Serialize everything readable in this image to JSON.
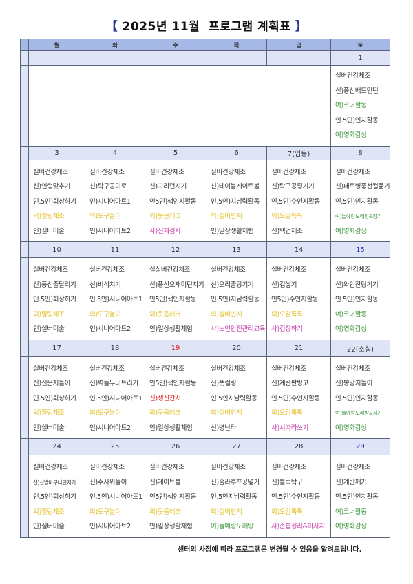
{
  "title": {
    "open": "【",
    "text": "2025년 11월  프로그램 계획표",
    "close": "】"
  },
  "colors": {
    "k": "#333333",
    "y": "#e3c02a",
    "m": "#c43aa8",
    "g": "#3c963c",
    "r": "#e01e1e",
    "b": "#2a3ab8"
  },
  "weekdays": [
    "월",
    "화",
    "수",
    "목",
    "금",
    "토"
  ],
  "weeks": [
    {
      "days": [
        {
          "date": "",
          "items": []
        },
        {
          "date": "",
          "items": []
        },
        {
          "date": "",
          "items": []
        },
        {
          "date": "",
          "items": []
        },
        {
          "date": "",
          "items": []
        },
        {
          "date": "1",
          "items": [
            {
              "text": "실버건강체조",
              "color": "k"
            },
            {
              "text": "신)풍선배드민턴",
              "color": "k"
            },
            {
              "text": "여)코너활동",
              "color": "g"
            },
            {
              "text": "인.5인)인지활동",
              "color": "k"
            },
            {
              "text": "여)영화감상",
              "color": "g"
            }
          ]
        }
      ]
    },
    {
      "days": [
        {
          "date": "3",
          "items": [
            {
              "text": "실버건강체조",
              "color": "k"
            },
            {
              "text": "신)인형맞추기",
              "color": "k"
            },
            {
              "text": "인.5인)회상하기",
              "color": "k"
            },
            {
              "text": "외)힐링체조",
              "color": "y"
            },
            {
              "text": "인)실버미술",
              "color": "k"
            }
          ]
        },
        {
          "date": "4",
          "items": [
            {
              "text": "실버건강체조",
              "color": "k"
            },
            {
              "text": "신)탁구공미로",
              "color": "k"
            },
            {
              "text": "인)시니어아트1",
              "color": "k"
            },
            {
              "text": "외)도구놀이",
              "color": "y"
            },
            {
              "text": "인)시니어아트2",
              "color": "k"
            }
          ]
        },
        {
          "date": "5",
          "items": [
            {
              "text": "실버건강체조",
              "color": "k"
            },
            {
              "text": "신)고리던지기",
              "color": "k"
            },
            {
              "text": "인5인)색인지활동",
              "color": "k"
            },
            {
              "text": "외)웃음레크",
              "color": "y"
            },
            {
              "text": "사)신체검사",
              "color": "m"
            }
          ]
        },
        {
          "date": "6",
          "items": [
            {
              "text": "실버건강체조",
              "color": "k"
            },
            {
              "text": "신)테이블게이트볼",
              "color": "k"
            },
            {
              "text": "인.5인)지남력활동",
              "color": "k"
            },
            {
              "text": "외)실버인지",
              "color": "y"
            },
            {
              "text": "인)일상생활체험",
              "color": "k"
            }
          ]
        },
        {
          "date": "7(입동)",
          "items": [
            {
              "text": "실버건강체조",
              "color": "k"
            },
            {
              "text": "신)탁구공튕기기",
              "color": "k"
            },
            {
              "text": "인.5인)수인지활동",
              "color": "k"
            },
            {
              "text": "외)오감톡톡",
              "color": "y"
            },
            {
              "text": "신)백업체조",
              "color": "k"
            }
          ]
        },
        {
          "date": "8",
          "items": [
            {
              "text": "실버건강체조",
              "color": "k"
            },
            {
              "text": "신)페트병풍선컵옮기기",
              "color": "k"
            },
            {
              "text": "인.5인)인지활동",
              "color": "k"
            },
            {
              "text": "여)늘예랑노래방&장기",
              "color": "g",
              "small": true
            },
            {
              "text": "여)영화감상",
              "color": "g"
            }
          ]
        }
      ]
    },
    {
      "days": [
        {
          "date": "10",
          "items": [
            {
              "text": "실버건강체조",
              "color": "k"
            },
            {
              "text": "신)풍선줄달리기",
              "color": "k"
            },
            {
              "text": "인.5인)회상하기",
              "color": "k"
            },
            {
              "text": "외)힐링체조",
              "color": "y"
            },
            {
              "text": "인)실버미술",
              "color": "k"
            }
          ]
        },
        {
          "date": "11",
          "items": [
            {
              "text": "실버건강체조",
              "color": "k"
            },
            {
              "text": "신)비석치기",
              "color": "k"
            },
            {
              "text": "인.5인)시니어아트1",
              "color": "k"
            },
            {
              "text": "외)도구놀이",
              "color": "y"
            },
            {
              "text": "인)시니어아트2",
              "color": "k"
            }
          ]
        },
        {
          "date": "12",
          "items": [
            {
              "text": "실실버건강체조",
              "color": "k"
            },
            {
              "text": "신)풍선오재미던지기",
              "color": "k"
            },
            {
              "text": "인5인)색인지활동",
              "color": "k"
            },
            {
              "text": "외)웃음레크",
              "color": "y"
            },
            {
              "text": "인)일상생활체험",
              "color": "k"
            }
          ]
        },
        {
          "date": "13",
          "items": [
            {
              "text": "실버건강체조",
              "color": "k"
            },
            {
              "text": "신)오리줄당기기",
              "color": "k"
            },
            {
              "text": "인.5인)지남력활동",
              "color": "k"
            },
            {
              "text": "외)실버인지",
              "color": "y"
            },
            {
              "text": "사)노인안전관리교육",
              "color": "m"
            }
          ]
        },
        {
          "date": "14",
          "items": [
            {
              "text": "실버건강체조",
              "color": "k"
            },
            {
              "text": "신)컵쌓기",
              "color": "k"
            },
            {
              "text": "인5인)수인지활동",
              "color": "k"
            },
            {
              "text": "외)오감톡톡",
              "color": "y"
            },
            {
              "text": "사)김장하기",
              "color": "m"
            }
          ]
        },
        {
          "date": "15",
          "date_color": "b",
          "items": [
            {
              "text": "실버건강체조",
              "color": "k"
            },
            {
              "text": "신)와인잔당기기",
              "color": "k"
            },
            {
              "text": "인.5인)인지활동",
              "color": "k"
            },
            {
              "text": "여)코너활동",
              "color": "g"
            },
            {
              "text": "여)영화감상",
              "color": "g"
            }
          ]
        }
      ]
    },
    {
      "days": [
        {
          "date": "17",
          "items": [
            {
              "text": "실버건강체조",
              "color": "k"
            },
            {
              "text": "신)신문지놀이",
              "color": "k"
            },
            {
              "text": "인.5인)회상하기",
              "color": "k"
            },
            {
              "text": "외)힐링체조",
              "color": "y"
            },
            {
              "text": "인)실버미술",
              "color": "k"
            }
          ]
        },
        {
          "date": "18",
          "items": [
            {
              "text": "실버건강체조",
              "color": "k"
            },
            {
              "text": "신)벽돌무너트리기",
              "color": "k"
            },
            {
              "text": "인.5인)시니어아트1",
              "color": "k"
            },
            {
              "text": "외)도구놀이",
              "color": "y"
            },
            {
              "text": "인)시니어아트2",
              "color": "k"
            }
          ]
        },
        {
          "date": "19",
          "date_color": "r",
          "items": [
            {
              "text": "실버건강체조",
              "color": "k"
            },
            {
              "text": "인5인)색인지활동",
              "color": "k"
            },
            {
              "text": "신)생신잔치",
              "color": "r"
            },
            {
              "text": "외)웃음레크",
              "color": "y"
            },
            {
              "text": "인)일상생활체험",
              "color": "k"
            }
          ]
        },
        {
          "date": "20",
          "items": [
            {
              "text": "실버건강체조",
              "color": "k"
            },
            {
              "text": "신)풋컬링",
              "color": "k"
            },
            {
              "text": "인.5인지남력활동",
              "color": "k"
            },
            {
              "text": "외)실버인지",
              "color": "y"
            },
            {
              "text": "신)병난타",
              "color": "k"
            }
          ]
        },
        {
          "date": "21",
          "items": [
            {
              "text": "실버건강체조",
              "color": "k"
            },
            {
              "text": "신)계란판빙고",
              "color": "k"
            },
            {
              "text": "인.5인)수인지활동",
              "color": "k"
            },
            {
              "text": "외)오감톡톡",
              "color": "y"
            },
            {
              "text": "사)시따라쓰기",
              "color": "m"
            }
          ]
        },
        {
          "date": "22(소설)",
          "items": [
            {
              "text": "실버건강체조",
              "color": "k"
            },
            {
              "text": "신)뽕망치놀이",
              "color": "k"
            },
            {
              "text": "인.5인)인지활동",
              "color": "k"
            },
            {
              "text": "여)늘예랑노래방&장기",
              "color": "g",
              "small": true
            },
            {
              "text": "여)영화감상",
              "color": "g"
            }
          ]
        }
      ]
    },
    {
      "days": [
        {
          "date": "24",
          "items": [
            {
              "text": "실버건강체조",
              "color": "k"
            },
            {
              "text": "신)신발바구니던지기",
              "color": "k",
              "small": true
            },
            {
              "text": "인.5인)회상하기",
              "color": "k"
            },
            {
              "text": "외)힐링체조",
              "color": "y"
            },
            {
              "text": "인)실버미술",
              "color": "k"
            }
          ]
        },
        {
          "date": "25",
          "items": [
            {
              "text": "실버건강체조",
              "color": "k"
            },
            {
              "text": "신)주사위놀이",
              "color": "k"
            },
            {
              "text": "인.5인)시니어아트1",
              "color": "k"
            },
            {
              "text": "외)도구놀이",
              "color": "y"
            },
            {
              "text": "인)시니어아트2",
              "color": "k"
            }
          ]
        },
        {
          "date": "26",
          "items": [
            {
              "text": "실버건강체조",
              "color": "k"
            },
            {
              "text": "신)게이트볼",
              "color": "k"
            },
            {
              "text": "인5인)색인지활동",
              "color": "k"
            },
            {
              "text": "외)웃음레크",
              "color": "y"
            },
            {
              "text": "인)일상생활체험",
              "color": "k"
            }
          ]
        },
        {
          "date": "27",
          "items": [
            {
              "text": "실버건강체조",
              "color": "k"
            },
            {
              "text": "신)훌라후프공넣기",
              "color": "k"
            },
            {
              "text": "인.5인지남력활동",
              "color": "k"
            },
            {
              "text": "외)실버인지",
              "color": "y"
            },
            {
              "text": "여)늘예랑노래방",
              "color": "g"
            }
          ]
        },
        {
          "date": "28",
          "items": [
            {
              "text": "실버건강체조",
              "color": "k"
            },
            {
              "text": "신)블럭탁구",
              "color": "k"
            },
            {
              "text": "인.5인)수인지활동",
              "color": "k"
            },
            {
              "text": "외)오감톡톡",
              "color": "y"
            },
            {
              "text": "사)손톱정리&마사지",
              "color": "m"
            }
          ]
        },
        {
          "date": "29",
          "date_color": "b",
          "items": [
            {
              "text": "실버건강체조",
              "color": "k"
            },
            {
              "text": "신)계란깨기",
              "color": "k"
            },
            {
              "text": "인.5인)인지활동",
              "color": "k"
            },
            {
              "text": "여)코너활동",
              "color": "g"
            },
            {
              "text": "여)영화감상",
              "color": "g"
            }
          ]
        }
      ]
    }
  ],
  "footer": "센터의 사정에 따라 프로그램은 변경될 수 있음을 알려드립니다."
}
